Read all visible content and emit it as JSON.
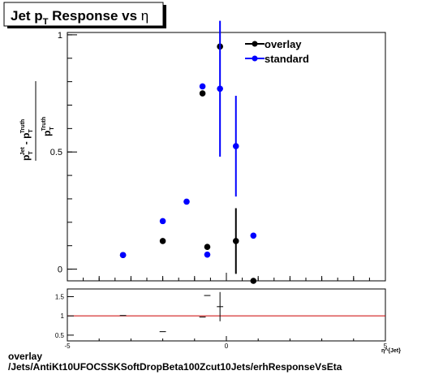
{
  "title_parts": {
    "main": "Jet p",
    "sub": "T",
    "rest": " Response vs ",
    "greek": "η"
  },
  "ylabel_parts": {
    "p": "p",
    "t": "T",
    "jet": "Jet",
    "minus": "- p",
    "truth": "Truth"
  },
  "xlabel": "η^{Jet}",
  "footer": {
    "line1": "overlay",
    "line2": "/Jets/AntiKt10UFOCSSKSoftDropBeta100Zcut10Jets/erhResponseVsEta"
  },
  "colors": {
    "overlay": "#000000",
    "standard": "#0000ff",
    "ratio_line": "#cc0000",
    "axes": "#000000"
  },
  "chart_data": {
    "type": "scatter",
    "main": {
      "xlim": [
        -5,
        5
      ],
      "ylim": [
        -0.05,
        1.01
      ],
      "yticks": [
        0,
        0.5,
        1
      ],
      "ytick_labels": [
        "0",
        "0.5",
        "1"
      ],
      "series": [
        {
          "name": "overlay",
          "color": "#000000",
          "points": [
            {
              "x": -3.25,
              "y": 0.06,
              "yerr": 0.0
            },
            {
              "x": -2.0,
              "y": 0.12,
              "yerr": 0.0
            },
            {
              "x": -0.75,
              "y": 0.75,
              "yerr": 0.0
            },
            {
              "x": -0.6,
              "y": 0.095,
              "yerr": 0.0
            },
            {
              "x": -0.2,
              "y": 0.95,
              "yerr": 0.0
            },
            {
              "x": 0.3,
              "y": 0.12,
              "yerr": 0.14
            },
            {
              "x": 0.85,
              "y": -0.05,
              "yerr": 0.0
            }
          ]
        },
        {
          "name": "standard",
          "color": "#0000ff",
          "points": [
            {
              "x": -3.25,
              "y": 0.06,
              "yerr": 0.0
            },
            {
              "x": -2.0,
              "y": 0.205,
              "yerr": 0.0
            },
            {
              "x": -1.25,
              "y": 0.288,
              "yerr": 0.0
            },
            {
              "x": -0.75,
              "y": 0.78,
              "yerr": 0.0
            },
            {
              "x": -0.6,
              "y": 0.062,
              "yerr": 0.0
            },
            {
              "x": -0.2,
              "y": 0.77,
              "yerr": 0.29
            },
            {
              "x": 0.3,
              "y": 0.525,
              "yerr": 0.215
            },
            {
              "x": 0.85,
              "y": 0.143,
              "yerr": 0.0
            }
          ]
        }
      ]
    },
    "ratio": {
      "xlim": [
        -5,
        5
      ],
      "ylim": [
        0.35,
        1.7
      ],
      "yticks": [
        0.5,
        1,
        1.5
      ],
      "ytick_labels": [
        "0.5",
        "1",
        "1.5"
      ],
      "xticks": [
        -5,
        0,
        5
      ],
      "xtick_labels": [
        "-5",
        "0",
        "5"
      ],
      "reference": 1,
      "points": [
        {
          "x": -3.25,
          "y": 1.01,
          "xerr": 0.1,
          "yerr": 0.0
        },
        {
          "x": -2.0,
          "y": 0.59,
          "xerr": 0.1,
          "yerr": 0.0
        },
        {
          "x": -0.75,
          "y": 0.97,
          "xerr": 0.1,
          "yerr": 0.0
        },
        {
          "x": -0.6,
          "y": 1.53,
          "xerr": 0.1,
          "yerr": 0.0
        },
        {
          "x": -0.2,
          "y": 1.24,
          "xerr": 0.1,
          "yerr": 0.38
        }
      ]
    }
  }
}
